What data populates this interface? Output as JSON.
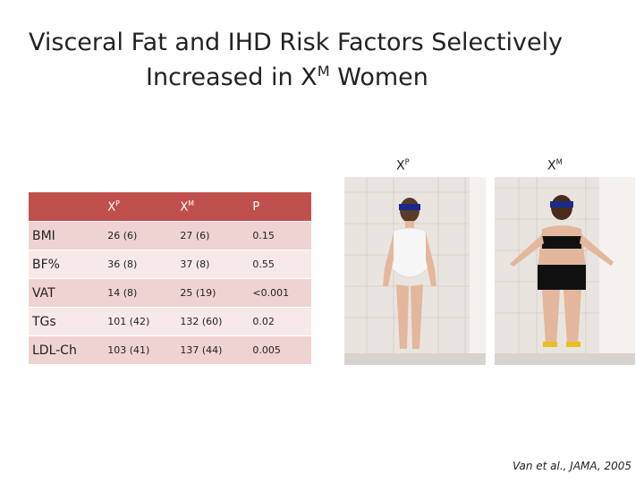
{
  "title": {
    "line1": "Visceral Fat and IHD Risk Factors Selectively",
    "line2_before": "Increased in X",
    "line2_sup": "M",
    "line2_after": " Women"
  },
  "table": {
    "header": [
      {
        "base": "X",
        "sup": "P"
      },
      {
        "base": "X",
        "sup": "M"
      },
      "P"
    ],
    "rows": [
      [
        "BMI",
        "26 (6)",
        "27 (6)",
        "0.15"
      ],
      [
        "BF%",
        "36 (8)",
        "37 (8)",
        "0.55"
      ],
      [
        "VAT",
        "14 (8)",
        "25 (19)",
        "<0.001"
      ],
      [
        "TGs",
        "101 (42)",
        "132 (60)",
        "0.02"
      ],
      [
        "LDL-Ch",
        "103 (41)",
        "137 (44)",
        "0.005"
      ]
    ]
  },
  "photos": [
    {
      "base": "X",
      "sup": "P"
    },
    {
      "base": "X",
      "sup": "M"
    }
  ],
  "citation": "Van et al., JAMA, 2005"
}
